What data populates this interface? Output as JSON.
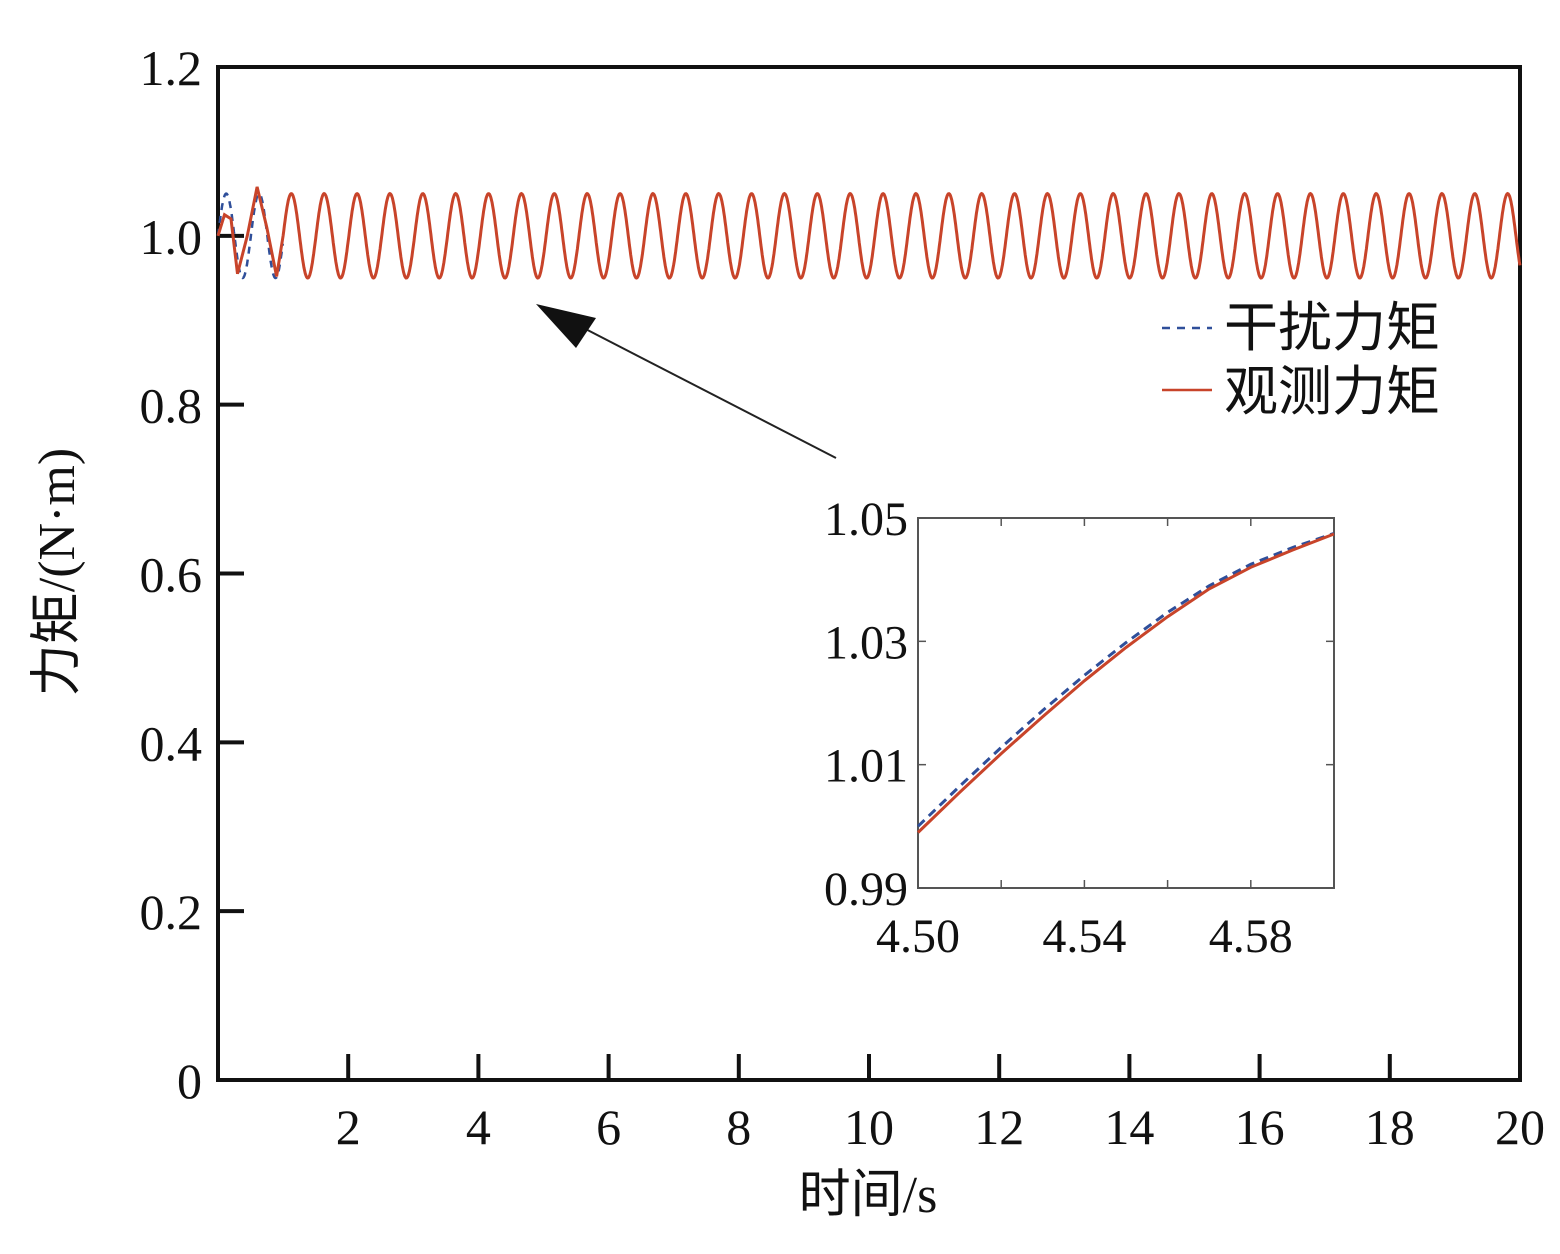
{
  "chart_data": [
    {
      "type": "line",
      "title": "",
      "xlabel": "时间/s",
      "ylabel": "力矩/(N·m)",
      "xlim": [
        0,
        20
      ],
      "ylim": [
        0,
        1.2
      ],
      "x_ticks": [
        "2",
        "4",
        "6",
        "8",
        "10",
        "12",
        "14",
        "16",
        "18",
        "20"
      ],
      "y_ticks": [
        "0",
        "0.2",
        "0.4",
        "0.6",
        "0.8",
        "1.0",
        "1.2"
      ],
      "grid": false,
      "legend_position": "right, below top",
      "series": [
        {
          "name": "干扰力矩",
          "style": "dashed",
          "color": "#2f4f9a",
          "description_model": {
            "offset": 1.0,
            "amplitude": 0.05,
            "period_s": 0.505
          }
        },
        {
          "name": "观测力矩",
          "style": "solid",
          "color": "#c8442a",
          "x": [
            0.0,
            0.1,
            0.2,
            0.3,
            0.45,
            0.6,
            0.75,
            0.9,
            1.0
          ],
          "y": [
            1.0,
            1.025,
            1.02,
            0.955,
            1.0,
            1.058,
            1.01,
            0.952,
            1.0
          ],
          "steady_state": {
            "offset": 1.0,
            "amplitude": 0.05,
            "period_s": 0.505
          }
        }
      ]
    },
    {
      "type": "line",
      "title": "",
      "inset": true,
      "xlim": [
        4.5,
        4.6
      ],
      "ylim": [
        0.99,
        1.05
      ],
      "x_ticks": [
        "4.50",
        "4.54",
        "4.58"
      ],
      "y_ticks": [
        "0.99",
        "1.01",
        "1.03",
        "1.05"
      ],
      "series": [
        {
          "name": "干扰力矩",
          "style": "dashed",
          "color": "#2f4f9a",
          "x": [
            4.5,
            4.51,
            4.52,
            4.53,
            4.54,
            4.55,
            4.56,
            4.57,
            4.58,
            4.59,
            4.6
          ],
          "y": [
            1.0,
            1.0065,
            1.0128,
            1.0188,
            1.0245,
            1.0298,
            1.0347,
            1.039,
            1.0425,
            1.0452,
            1.0475
          ]
        },
        {
          "name": "观测力矩",
          "style": "solid",
          "color": "#c8442a",
          "x": [
            4.5,
            4.51,
            4.52,
            4.53,
            4.54,
            4.55,
            4.56,
            4.57,
            4.58,
            4.59,
            4.6
          ],
          "y": [
            0.999,
            1.0055,
            1.0118,
            1.0178,
            1.0236,
            1.029,
            1.034,
            1.0385,
            1.042,
            1.0448,
            1.0474
          ]
        }
      ]
    }
  ],
  "legend": {
    "items": [
      {
        "label": "干扰力矩",
        "color": "#2f4f9a",
        "style": "dashed"
      },
      {
        "label": "观测力矩",
        "color": "#c8442a",
        "style": "solid"
      }
    ]
  }
}
